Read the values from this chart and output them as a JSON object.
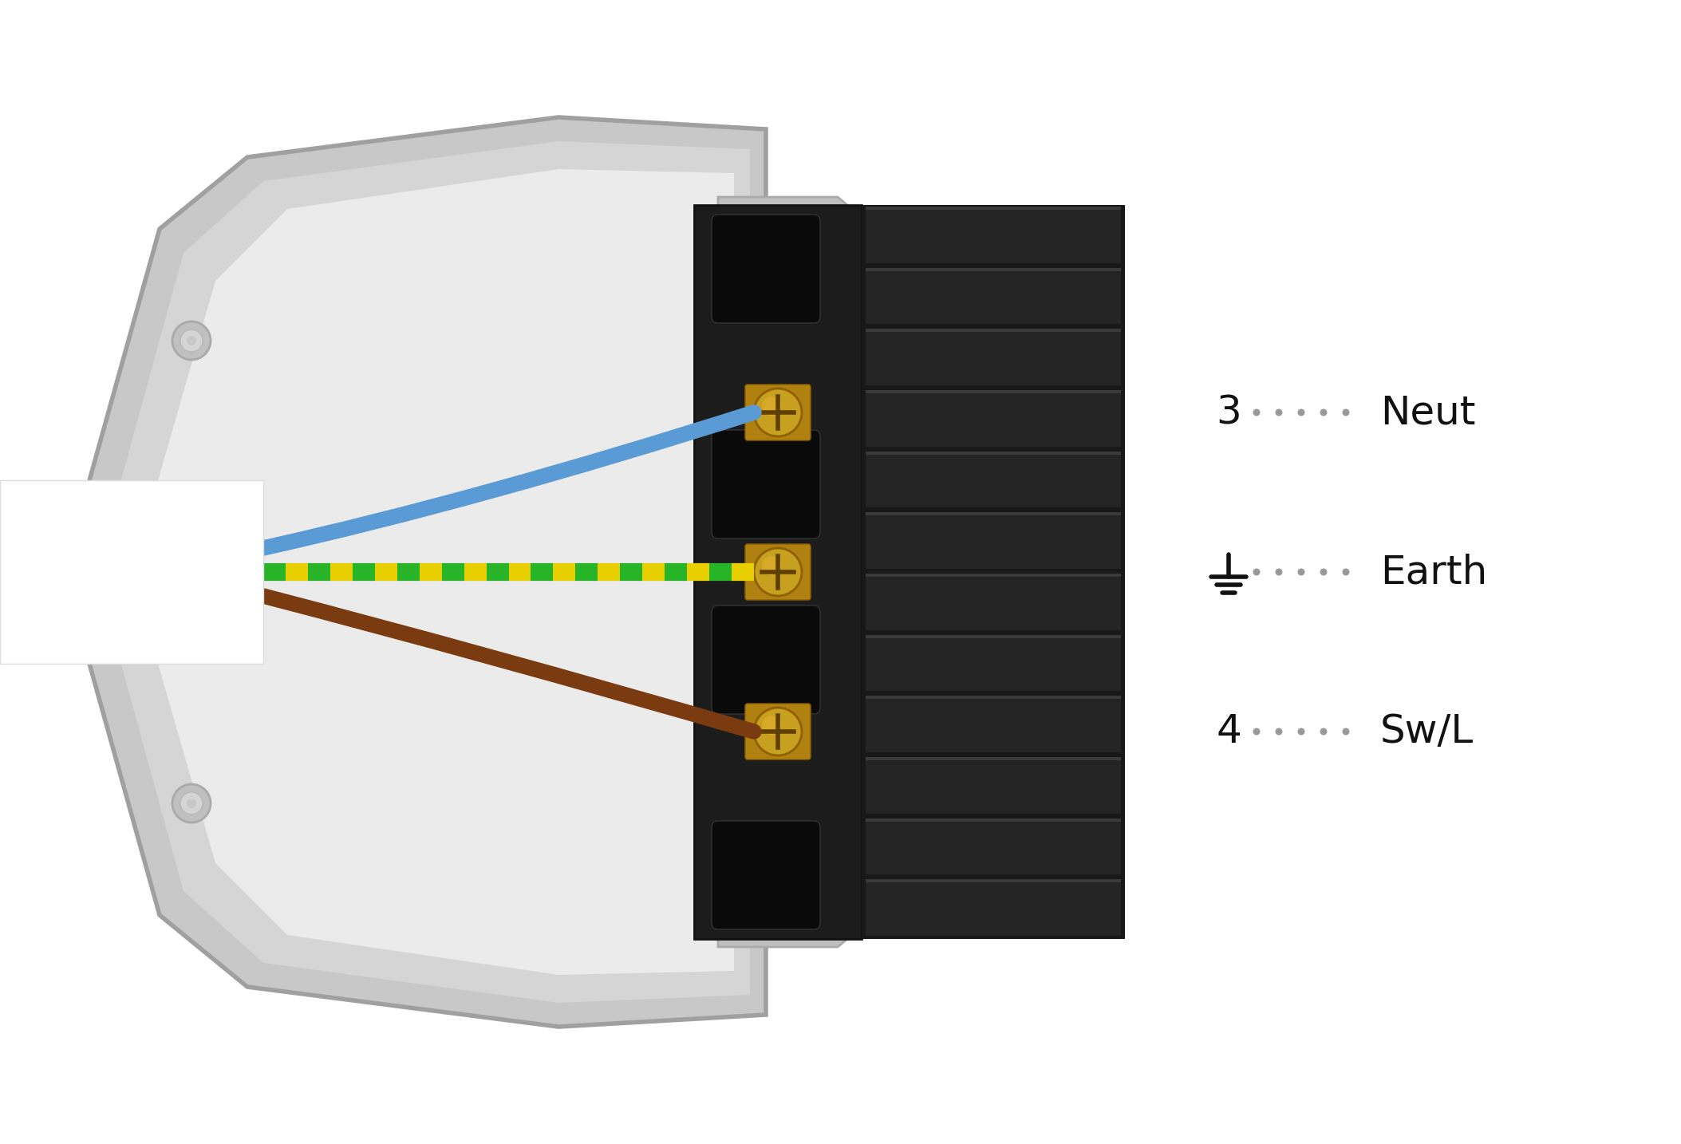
{
  "bg_color": "#ffffff",
  "figure_size": [
    21.07,
    14.34
  ],
  "dpi": 100,
  "screw_color": "#c8a020",
  "wire_blue_color": "#5b9bd5",
  "wire_gy_green": "#28b428",
  "wire_gy_yellow": "#e8d000",
  "wire_brown_color": "#7a3b10",
  "label_pin3": "3",
  "label_pin4": "4",
  "label_neut": "Neut",
  "label_earth_text": "Earth",
  "label_swl": "Sw/L",
  "dot_color": "#999999",
  "text_color": "#111111",
  "font_size_labels": 36,
  "housing_outer": "#c8c8c8",
  "housing_mid": "#d5d5d5",
  "housing_inner": "#e8e8e8",
  "housing_face": "#ebebeb",
  "conn_dark": "#1a1a1a",
  "conn_rib_dark": "#222222",
  "conn_rib_light": "#2e2e2e",
  "conn_slot": "#111111",
  "cable_entry_white": "#ffffff"
}
